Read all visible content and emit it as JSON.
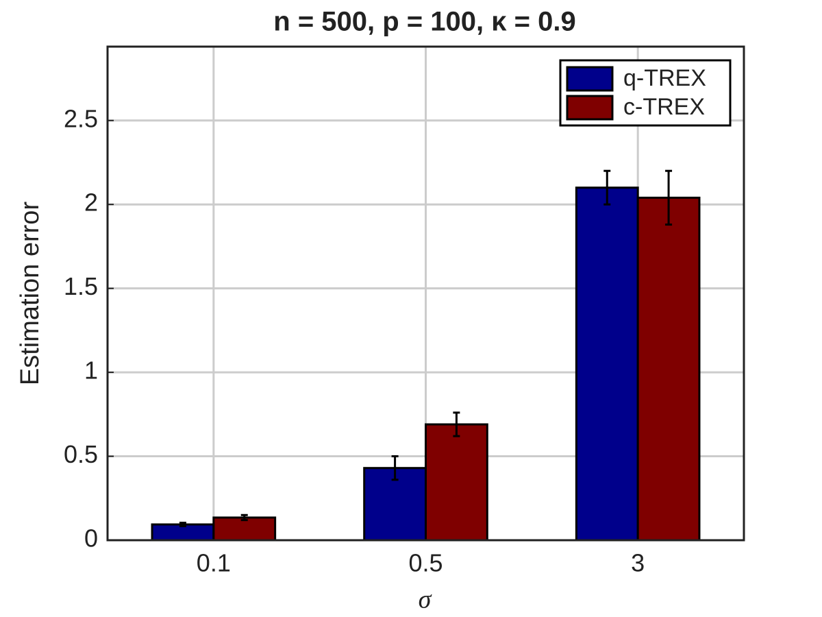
{
  "chart_data": {
    "type": "bar",
    "title": "n = 500, p = 100, κ = 0.9",
    "x_label": "σ",
    "y_label": "Estimation error",
    "categories": [
      "0.1",
      "0.5",
      "3"
    ],
    "series": [
      {
        "name": "q-TREX",
        "color": "#00008b",
        "values": [
          0.094,
          0.43,
          2.1
        ],
        "errors": [
          0.01,
          0.07,
          0.1
        ]
      },
      {
        "name": "c-TREX",
        "color": "#7f0000",
        "values": [
          0.135,
          0.69,
          2.04
        ],
        "errors": [
          0.015,
          0.07,
          0.16
        ]
      }
    ],
    "ylim": [
      0,
      2.94
    ],
    "yticks": [
      0,
      0.5,
      1,
      1.5,
      2,
      2.5
    ],
    "grid": true,
    "legend": "upper-right"
  }
}
